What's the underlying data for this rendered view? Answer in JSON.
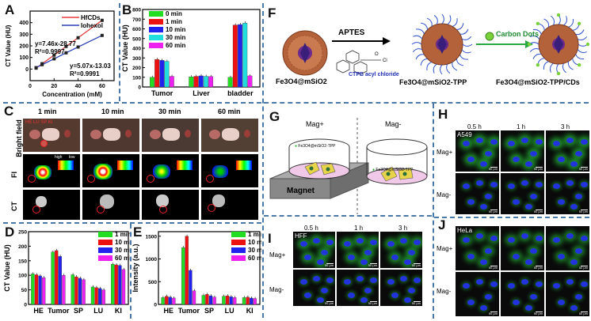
{
  "panels": {
    "A": "A",
    "B": "B",
    "C": "C",
    "D": "D",
    "E": "E",
    "F": "F",
    "G": "G",
    "H": "H",
    "I": "I",
    "J": "J"
  },
  "colors": {
    "min0": "#22dd22",
    "min1": "#ee1111",
    "min10": "#2222ee",
    "min30": "#22dddd",
    "min60": "#ee22ee",
    "hfcds": "#e33b3b",
    "iohexol": "#2a3fb8",
    "dash": "#4a78a8"
  },
  "chart_data": [
    {
      "id": "A",
      "type": "line",
      "xlabel": "Concentration (mM)",
      "ylabel": "CT Value (HU)",
      "xlim": [
        0,
        70
      ],
      "ylim": [
        -100,
        500
      ],
      "xticks": [
        0,
        20,
        40,
        60
      ],
      "yticks": [
        0,
        100,
        200,
        300,
        400
      ],
      "legend": [
        "HfCDs",
        "Iohexol"
      ],
      "annotations": [
        "y=7.46x-28.77",
        "R²=0.9997",
        "y=5.07x-13.03",
        "R²=0.9991"
      ],
      "series": [
        {
          "name": "HfCDs",
          "x": [
            5,
            10,
            20,
            30,
            40,
            60
          ],
          "y": [
            8,
            46,
            120,
            195,
            270,
            420
          ]
        },
        {
          "name": "Iohexol",
          "x": [
            5,
            10,
            20,
            30,
            40,
            60
          ],
          "y": [
            12,
            38,
            88,
            140,
            190,
            290
          ]
        }
      ]
    },
    {
      "id": "B",
      "type": "bar",
      "ylabel": "CT Value (HU)",
      "ylim": [
        0,
        800
      ],
      "yticks": [
        0,
        100,
        200,
        300,
        400,
        500,
        600,
        700,
        800
      ],
      "categories": [
        "Tumor",
        "Liver",
        "bladder"
      ],
      "series": [
        {
          "name": "0 min",
          "values": [
            100,
            105,
            100
          ]
        },
        {
          "name": "1 min",
          "values": [
            285,
            110,
            640
          ]
        },
        {
          "name": "10 min",
          "values": [
            275,
            115,
            645
          ]
        },
        {
          "name": "30 min",
          "values": [
            265,
            110,
            660
          ]
        },
        {
          "name": "60 min",
          "values": [
            110,
            108,
            115
          ]
        }
      ]
    },
    {
      "id": "D",
      "type": "bar",
      "ylabel": "CT Value (HU)",
      "ylim": [
        0,
        250
      ],
      "yticks": [
        0,
        50,
        100,
        150,
        200,
        250
      ],
      "categories": [
        "HE",
        "Tumor",
        "SP",
        "LU",
        "KI"
      ],
      "series": [
        {
          "name": "1 min",
          "values": [
            105,
            180,
            102,
            60,
            138
          ]
        },
        {
          "name": "10 min",
          "values": [
            102,
            185,
            95,
            58,
            136
          ]
        },
        {
          "name": "30 min",
          "values": [
            98,
            165,
            90,
            55,
            134
          ]
        },
        {
          "name": "60 min",
          "values": [
            92,
            100,
            85,
            50,
            120
          ]
        }
      ]
    },
    {
      "id": "E",
      "type": "bar",
      "ylabel": "Intensity (a.u.)",
      "ylim": [
        0,
        1600
      ],
      "yticks": [
        0,
        500,
        1000,
        1500
      ],
      "categories": [
        "HE",
        "Tumor",
        "SP",
        "LU",
        "KI"
      ],
      "series": [
        {
          "name": "1 min",
          "values": [
            150,
            1250,
            200,
            180,
            150
          ]
        },
        {
          "name": "10 min",
          "values": [
            180,
            1500,
            220,
            190,
            160
          ]
        },
        {
          "name": "30 min",
          "values": [
            160,
            750,
            190,
            170,
            140
          ]
        },
        {
          "name": "60 min",
          "values": [
            140,
            300,
            160,
            150,
            130
          ]
        }
      ]
    }
  ],
  "panelC": {
    "times": [
      "1 min",
      "10 min",
      "30 min",
      "60 min"
    ],
    "rows": [
      "Bright field",
      "FI",
      "CT"
    ],
    "organs": "HE  LU  SP  KI",
    "scale_high": "high",
    "scale_low": "low"
  },
  "panelF": {
    "label1": "Fe3O4@mSiO2",
    "label2": "Fe3O4@mSiO2-TPP",
    "label3": "Fe3O4@mSiO2-TPP/CDs",
    "arrow1": "APTES",
    "arrow2": "Carbon Dots",
    "reagent": "CTPB acyl chloride"
  },
  "panelG": {
    "mag_plus": "Mag+",
    "mag_minus": "Mag-",
    "dish_label": "Fe3O4@mSiO2-TPP",
    "magnet": "Magnet"
  },
  "panelH": {
    "times": [
      "0.5 h",
      "1 h",
      "3 h"
    ],
    "rows": [
      "Mag+",
      "Mag-"
    ],
    "cell": "A549",
    "scale": "50 μm"
  },
  "panelI": {
    "times": [
      "0.5 h",
      "1 h",
      "3 h"
    ],
    "rows": [
      "Mag+",
      "Mag-"
    ],
    "cell": "HFF",
    "scale": "50 μm"
  },
  "panelJ": {
    "rows": [
      "Mag+",
      "Mag-"
    ],
    "cell": "HeLa",
    "scale": "50 μm"
  }
}
